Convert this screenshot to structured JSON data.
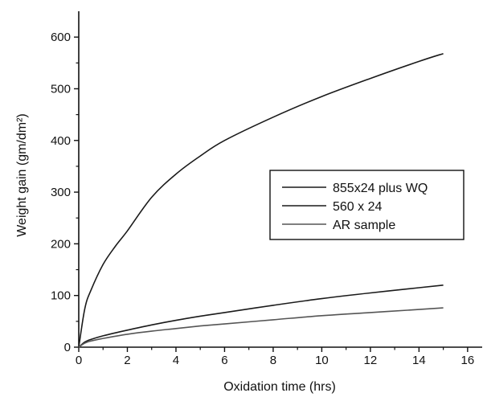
{
  "chart_data": {
    "type": "line",
    "xlabel": "Oxidation time (hrs)",
    "ylabel": "Weight gain (gm/dm²)",
    "xlim": [
      0,
      16.6
    ],
    "ylim": [
      0,
      650
    ],
    "x_ticks": [
      0,
      2,
      4,
      6,
      8,
      10,
      12,
      14,
      16
    ],
    "y_ticks": [
      0,
      100,
      200,
      300,
      400,
      500,
      600
    ],
    "legend_position": "center-right",
    "grid": false,
    "series": [
      {
        "name": "855x24 plus WQ",
        "color": "#1a1a1a",
        "x": [
          0,
          0.25,
          0.5,
          1,
          1.5,
          2,
          3,
          4,
          5,
          6,
          8,
          10,
          12,
          14,
          15
        ],
        "y": [
          0,
          75,
          110,
          160,
          195,
          225,
          290,
          335,
          370,
          400,
          445,
          485,
          520,
          553,
          568
        ]
      },
      {
        "name": "560 x 24",
        "color": "#1a1a1a",
        "x": [
          0,
          0.25,
          0.5,
          1,
          2,
          3,
          4,
          5,
          6,
          8,
          10,
          12,
          14,
          15
        ],
        "y": [
          0,
          10,
          15,
          22,
          33,
          43,
          52,
          60,
          67,
          81,
          94,
          105,
          115,
          120
        ]
      },
      {
        "name": "AR sample",
        "color": "#555555",
        "x": [
          0,
          0.25,
          0.5,
          1,
          2,
          3,
          4,
          5,
          6,
          8,
          10,
          12,
          14,
          15
        ],
        "y": [
          0,
          8,
          12,
          17,
          25,
          31,
          36,
          41,
          45,
          53,
          61,
          67,
          73,
          76
        ]
      }
    ]
  }
}
